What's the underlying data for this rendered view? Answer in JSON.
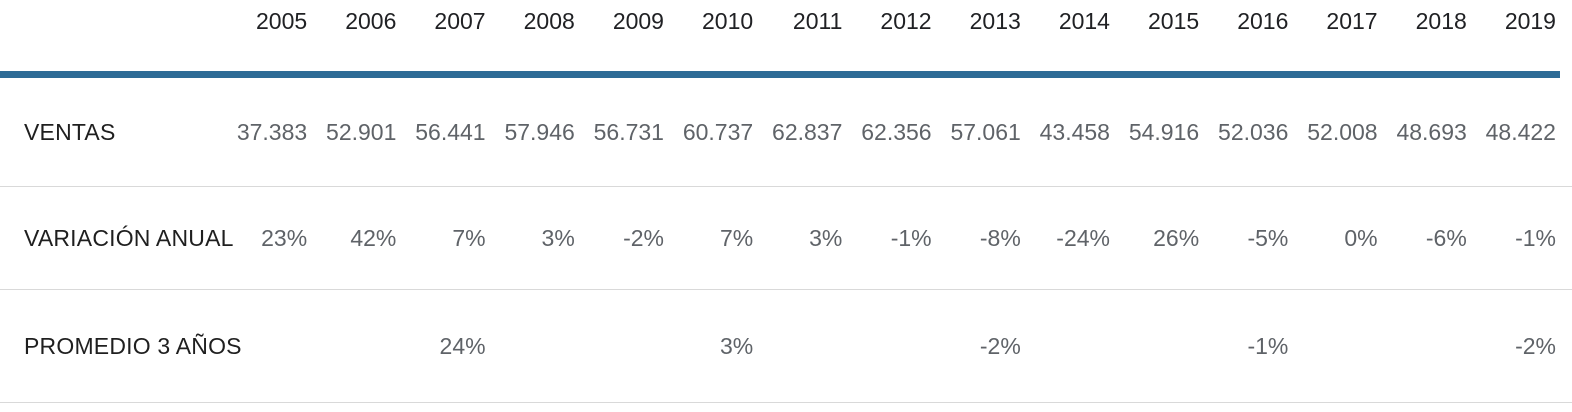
{
  "table": {
    "years": [
      "2005",
      "2006",
      "2007",
      "2008",
      "2009",
      "2010",
      "2011",
      "2012",
      "2013",
      "2014",
      "2015",
      "2016",
      "2017",
      "2018",
      "2019"
    ],
    "rows": [
      {
        "label": "VENTAS",
        "values": [
          "37.383",
          "52.901",
          "56.441",
          "57.946",
          "56.731",
          "60.737",
          "62.837",
          "62.356",
          "57.061",
          "43.458",
          "54.916",
          "52.036",
          "52.008",
          "48.693",
          "48.422"
        ]
      },
      {
        "label": "VARIACIÓN ANUAL",
        "values": [
          "23%",
          "42%",
          "7%",
          "3%",
          "-2%",
          "7%",
          "3%",
          "-1%",
          "-8%",
          "-24%",
          "26%",
          "-5%",
          "0%",
          "-6%",
          "-1%"
        ]
      },
      {
        "label": "PROMEDIO 3 AÑOS",
        "values": [
          "",
          "",
          "24%",
          "",
          "",
          "3%",
          "",
          "",
          "-2%",
          "",
          "",
          "-1%",
          "",
          "",
          "-2%"
        ]
      }
    ]
  },
  "colors": {
    "accent_blue": "#2e6b96",
    "separator": "#d9d9d9",
    "header_text": "#202124",
    "label_text": "#1f1f1f",
    "value_text": "#5f6368"
  },
  "chart_data": {
    "type": "table",
    "categories": [
      "2005",
      "2006",
      "2007",
      "2008",
      "2009",
      "2010",
      "2011",
      "2012",
      "2013",
      "2014",
      "2015",
      "2016",
      "2017",
      "2018",
      "2019"
    ],
    "series": [
      {
        "name": "VENTAS",
        "values": [
          37383,
          52901,
          56441,
          57946,
          56731,
          60737,
          62837,
          62356,
          57061,
          43458,
          54916,
          52036,
          52008,
          48693,
          48422
        ]
      },
      {
        "name": "VARIACIÓN ANUAL",
        "unit": "%",
        "values": [
          23,
          42,
          7,
          3,
          -2,
          7,
          3,
          -1,
          -8,
          -24,
          26,
          -5,
          0,
          -6,
          -1
        ]
      },
      {
        "name": "PROMEDIO 3 AÑOS",
        "unit": "%",
        "values": [
          null,
          null,
          24,
          null,
          null,
          3,
          null,
          null,
          -2,
          null,
          null,
          -1,
          null,
          null,
          -2
        ]
      }
    ],
    "title": "",
    "xlabel": "",
    "ylabel": "",
    "notes": "Spanish-locale number formatting with dot as thousands separator; blank cells in PROMEDIO 3 AÑOS row indicate no 3-year average shown for that year"
  }
}
